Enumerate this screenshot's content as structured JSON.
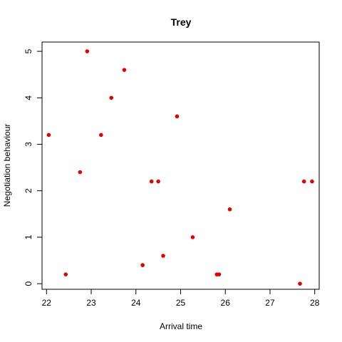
{
  "chart_data": {
    "type": "scatter",
    "title": "Trey",
    "xlabel": "Arrival time",
    "ylabel": "Negotiation behaviour",
    "xlim": [
      21.9,
      28.1
    ],
    "ylim": [
      -0.12,
      5.2
    ],
    "xticks": [
      22,
      23,
      24,
      25,
      26,
      27,
      28
    ],
    "yticks": [
      0,
      1,
      2,
      3,
      4,
      5
    ],
    "x_tick_labels": [
      "22",
      "23",
      "24",
      "25",
      "26",
      "27",
      "28"
    ],
    "y_tick_labels": [
      "0",
      "1",
      "2",
      "3",
      "4",
      "5"
    ],
    "grid": false,
    "point_color": "#e60000",
    "series": [
      {
        "points": [
          {
            "x": 22.05,
            "y": 3.2
          },
          {
            "x": 22.43,
            "y": 0.2
          },
          {
            "x": 22.75,
            "y": 2.4
          },
          {
            "x": 22.91,
            "y": 5.0
          },
          {
            "x": 23.22,
            "y": 3.2
          },
          {
            "x": 23.45,
            "y": 4.0
          },
          {
            "x": 23.74,
            "y": 4.6
          },
          {
            "x": 24.15,
            "y": 0.4
          },
          {
            "x": 24.35,
            "y": 2.2
          },
          {
            "x": 24.5,
            "y": 2.2
          },
          {
            "x": 24.61,
            "y": 0.6
          },
          {
            "x": 24.92,
            "y": 3.6
          },
          {
            "x": 25.27,
            "y": 1.0
          },
          {
            "x": 25.81,
            "y": 0.2
          },
          {
            "x": 25.86,
            "y": 0.2
          },
          {
            "x": 26.1,
            "y": 1.6
          },
          {
            "x": 27.67,
            "y": 0.0
          },
          {
            "x": 27.76,
            "y": 2.2
          },
          {
            "x": 27.94,
            "y": 2.2
          }
        ]
      }
    ]
  }
}
